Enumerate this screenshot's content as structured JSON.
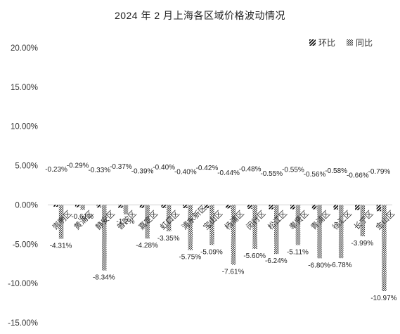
{
  "chart_data": {
    "type": "bar",
    "title": "2024 年 2 月上海各区域价格波动情况",
    "xlabel": "",
    "ylabel": "",
    "ylim": [
      -0.15,
      0.2
    ],
    "yticks": [
      0.2,
      0.15,
      0.1,
      0.05,
      0.0,
      -0.05,
      -0.1,
      -0.15
    ],
    "ytick_labels": [
      "20.00%",
      "15.00%",
      "10.00%",
      "5.00%",
      "0.00%",
      "-5.00%",
      "-10.00%",
      "-15.00%"
    ],
    "legend_position": "top-right",
    "categories": [
      "崇明区",
      "黄浦区",
      "静安区",
      "普陀区",
      "嘉定区",
      "虹口区",
      "浦东新区",
      "宝山区",
      "杨浦区",
      "闵行区",
      "松江区",
      "奉贤区",
      "青浦区",
      "徐汇区",
      "长宁区",
      "金山区"
    ],
    "series": [
      {
        "name": "环比",
        "pattern": "diagonal-stripes",
        "color": "#000000",
        "values": [
          -0.0023,
          -0.0029,
          -0.0033,
          -0.0037,
          -0.0039,
          -0.004,
          -0.004,
          -0.0042,
          -0.0044,
          -0.0048,
          -0.0055,
          -0.0055,
          -0.0056,
          -0.0058,
          -0.0066,
          -0.0079
        ],
        "labels": [
          "-0.23%",
          "-0.29%",
          "-0.33%",
          "-0.37%",
          "-0.39%",
          "-0.40%",
          "-0.40%",
          "-0.42%",
          "-0.44%",
          "-0.48%",
          "-0.55%",
          "-0.55%",
          "-0.56%",
          "-0.58%",
          "-0.66%",
          "-0.79%"
        ]
      },
      {
        "name": "同比",
        "pattern": "checkered",
        "color": "#555555",
        "values": [
          -0.0431,
          -0.0061,
          -0.0834,
          -0.012,
          -0.0428,
          -0.0335,
          -0.0575,
          -0.0509,
          -0.0761,
          -0.056,
          -0.0624,
          -0.0511,
          -0.068,
          -0.0678,
          -0.0399,
          -0.1097
        ],
        "labels": [
          "-4.31%",
          "-0.61%",
          "-8.34%",
          "-1.2%",
          "-4.28%",
          "-3.35%",
          "-5.75%",
          "-5.09%",
          "-7.61%",
          "-5.60%",
          "-6.24%",
          "-5.11%",
          "-6.80%",
          "-6.78%",
          "-3.99%",
          "-10.97%"
        ]
      }
    ]
  }
}
